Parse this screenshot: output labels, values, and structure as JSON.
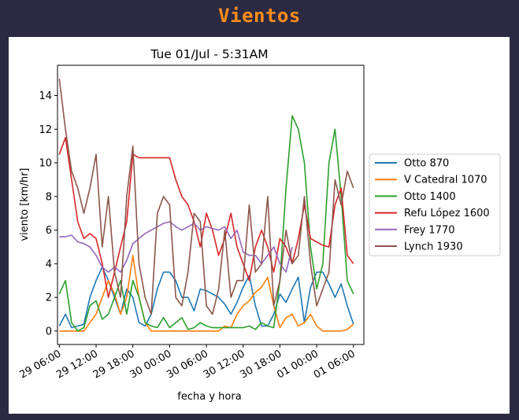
{
  "header": {
    "title": "Vientos"
  },
  "chart_data": {
    "type": "line",
    "title": "Tue 01/Jul - 5:31AM",
    "xlabel": "fecha y hora",
    "ylabel": "viento [km/hr]",
    "xlim": [
      -0.3,
      49.7
    ],
    "ylim": [
      -0.8,
      15.8
    ],
    "x_tick_labels": [
      "29 06:00",
      "29 12:00",
      "29 18:00",
      "30 00:00",
      "30 06:00",
      "30 12:00",
      "30 18:00",
      "01 00:00",
      "01 06:00"
    ],
    "y_ticks": [
      0,
      2,
      4,
      6,
      8,
      10,
      12,
      14
    ],
    "grid": false,
    "legend": "right",
    "x_unit": "hours since 29 06:00",
    "series": [
      {
        "name": "Otto 870",
        "color": "#1f77b4",
        "x": [
          0,
          1,
          2,
          3,
          4,
          5,
          6,
          7,
          8,
          9,
          10,
          11,
          12,
          13,
          14,
          15,
          16,
          17,
          18,
          19,
          20,
          21,
          22,
          23,
          24,
          25,
          26,
          27,
          28,
          29,
          30,
          31,
          32,
          33,
          34,
          35,
          36,
          37,
          38,
          39,
          40,
          41,
          42,
          43,
          44,
          45,
          46,
          47,
          48
        ],
        "values": [
          0.3,
          1.0,
          0.2,
          0.3,
          0.4,
          2.0,
          3.0,
          3.8,
          3.0,
          2.0,
          1.0,
          2.5,
          2.0,
          0.5,
          0.3,
          1.0,
          2.5,
          3.5,
          3.5,
          3.0,
          2.0,
          2.0,
          1.2,
          2.5,
          2.4,
          2.2,
          2.0,
          1.6,
          1.0,
          1.7,
          2.6,
          3.3,
          1.5,
          0.3,
          0.3,
          1.0,
          2.2,
          1.7,
          2.5,
          3.2,
          0.5,
          2.6,
          3.5,
          3.5,
          2.8,
          2.0,
          2.8,
          1.5,
          0.4
        ]
      },
      {
        "name": "V Catedral 1070",
        "color": "#ff7f0e",
        "x": [
          0,
          1,
          2,
          3,
          4,
          5,
          6,
          7,
          8,
          9,
          10,
          11,
          12,
          13,
          14,
          15,
          16,
          17,
          18,
          19,
          20,
          21,
          22,
          23,
          24,
          25,
          26,
          27,
          28,
          29,
          30,
          31,
          32,
          33,
          34,
          35,
          36,
          37,
          38,
          39,
          40,
          41,
          42,
          43,
          44,
          45,
          46,
          47,
          48
        ],
        "values": [
          0.0,
          0.0,
          0.0,
          0.0,
          0.0,
          0.5,
          1.0,
          2.0,
          3.0,
          2.2,
          1.0,
          2.0,
          4.5,
          2.0,
          0.5,
          0.0,
          0.0,
          0.0,
          0.0,
          0.0,
          0.0,
          0.0,
          0.0,
          0.0,
          0.0,
          0.0,
          0.0,
          0.3,
          0.2,
          1.0,
          1.5,
          1.8,
          2.3,
          2.6,
          3.2,
          1.5,
          0.2,
          0.8,
          1.0,
          0.3,
          0.5,
          1.0,
          0.3,
          0.0,
          0.0,
          0.0,
          0.0,
          0.1,
          0.4
        ]
      },
      {
        "name": "Otto 1400",
        "color": "#2ca02c",
        "x": [
          0,
          1,
          2,
          3,
          4,
          5,
          6,
          7,
          8,
          9,
          10,
          11,
          12,
          13,
          14,
          15,
          16,
          17,
          18,
          19,
          20,
          21,
          22,
          23,
          24,
          25,
          26,
          27,
          28,
          29,
          30,
          31,
          32,
          33,
          34,
          35,
          36,
          37,
          38,
          39,
          40,
          41,
          42,
          43,
          44,
          45,
          46,
          47,
          48
        ],
        "values": [
          2.2,
          3.0,
          0.5,
          0.0,
          0.2,
          1.5,
          1.8,
          0.7,
          1.0,
          2.0,
          3.0,
          1.0,
          3.0,
          2.0,
          0.5,
          0.3,
          0.2,
          0.8,
          0.2,
          0.5,
          0.8,
          0.1,
          0.2,
          0.5,
          0.3,
          0.2,
          0.2,
          0.2,
          0.2,
          0.2,
          0.2,
          0.3,
          0.1,
          0.5,
          0.3,
          0.2,
          3.0,
          8.5,
          12.8,
          12.0,
          10.0,
          5.0,
          2.5,
          4.0,
          10.0,
          12.0,
          8.0,
          3.0,
          2.2
        ]
      },
      {
        "name": "Refu López 1600",
        "color": "#d62728",
        "x": [
          0,
          1,
          2,
          3,
          4,
          5,
          6,
          7,
          8,
          9,
          10,
          11,
          12,
          13,
          14,
          15,
          16,
          17,
          18,
          19,
          20,
          21,
          22,
          23,
          24,
          25,
          26,
          27,
          28,
          29,
          30,
          31,
          32,
          33,
          34,
          35,
          36,
          37,
          38,
          39,
          40,
          41,
          42,
          43,
          44,
          45,
          46,
          47,
          48
        ],
        "values": [
          10.5,
          11.5,
          9.0,
          6.5,
          5.5,
          5.8,
          5.5,
          4.0,
          2.0,
          3.5,
          5.0,
          6.5,
          10.5,
          10.3,
          10.3,
          10.3,
          10.3,
          10.3,
          10.3,
          9.0,
          8.0,
          7.5,
          6.5,
          5.0,
          7.0,
          6.0,
          4.5,
          5.5,
          7.0,
          5.0,
          4.0,
          3.0,
          5.0,
          6.0,
          5.0,
          3.5,
          5.5,
          5.0,
          4.0,
          5.5,
          7.5,
          5.5,
          5.3,
          5.1,
          5.0,
          7.5,
          8.5,
          4.5,
          4.0
        ]
      },
      {
        "name": "Frey 1770",
        "color": "#9467bd",
        "x": [
          0,
          1,
          2,
          3,
          4,
          5,
          6,
          7,
          8,
          9,
          10,
          11,
          12,
          13,
          14,
          15,
          16,
          17,
          18,
          19,
          20,
          21,
          22,
          23,
          24,
          25,
          26,
          27,
          28,
          29,
          30,
          31,
          32,
          33,
          34,
          35,
          36,
          37,
          38
        ],
        "values": [
          5.6,
          5.6,
          5.7,
          5.3,
          5.2,
          5.0,
          4.5,
          3.8,
          3.5,
          3.8,
          3.5,
          4.2,
          5.2,
          5.5,
          5.8,
          6.0,
          6.2,
          6.4,
          6.5,
          6.2,
          6.0,
          6.2,
          6.4,
          6.0,
          6.2,
          6.1,
          6.0,
          6.2,
          5.5,
          6.0,
          4.7,
          4.5,
          4.5,
          4.0,
          4.5,
          5.0,
          4.0,
          3.5,
          5.0
        ]
      },
      {
        "name": "Lynch 1930",
        "color": "#8c564b",
        "x": [
          0,
          1,
          2,
          3,
          4,
          5,
          6,
          7,
          8,
          9,
          10,
          11,
          12,
          13,
          14,
          15,
          16,
          17,
          18,
          19,
          20,
          21,
          22,
          23,
          24,
          25,
          26,
          27,
          28,
          29,
          30,
          31,
          32,
          33,
          34,
          35,
          36,
          37,
          38,
          39,
          40,
          41,
          42,
          43,
          44,
          45,
          46,
          47,
          48
        ],
        "values": [
          15.0,
          12.0,
          9.5,
          8.5,
          7.0,
          8.5,
          10.5,
          5.0,
          8.0,
          3.5,
          2.0,
          8.0,
          11.0,
          4.0,
          2.0,
          1.0,
          7.0,
          8.0,
          7.5,
          2.0,
          1.5,
          3.5,
          7.0,
          6.5,
          1.5,
          1.0,
          2.5,
          6.0,
          2.0,
          3.0,
          3.0,
          7.5,
          3.5,
          4.0,
          8.0,
          1.5,
          3.0,
          6.0,
          4.0,
          4.5,
          8.0,
          4.0,
          1.5,
          2.5,
          3.5,
          9.0,
          7.5,
          9.5,
          8.5
        ]
      }
    ]
  }
}
